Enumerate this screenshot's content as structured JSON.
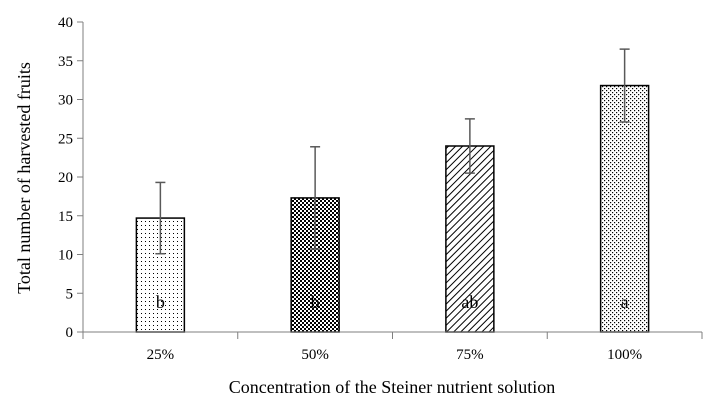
{
  "chart_data": {
    "type": "bar",
    "title": "",
    "xlabel": "Concentration of the Steiner nutrient solution",
    "ylabel": "Total number of harvested fruits",
    "ylim": [
      0,
      40
    ],
    "yticks": [
      0,
      5,
      10,
      15,
      20,
      25,
      30,
      35,
      40
    ],
    "grid": false,
    "legend": "none",
    "categories": [
      "25%",
      "50%",
      "75%",
      "100%"
    ],
    "values": [
      14.7,
      17.3,
      24.0,
      31.8
    ],
    "error": [
      4.6,
      6.6,
      3.5,
      4.7
    ],
    "significance_letters": [
      "b",
      "b",
      "ab",
      "a"
    ],
    "bar_patterns": [
      "sparse-dots",
      "checker",
      "diagonal-hatch",
      "diamond-dots"
    ],
    "colors": {
      "bar_outline": "#000000",
      "pattern": "#000000",
      "error_bar": "#595959",
      "axis": "#7f7f7f"
    }
  }
}
